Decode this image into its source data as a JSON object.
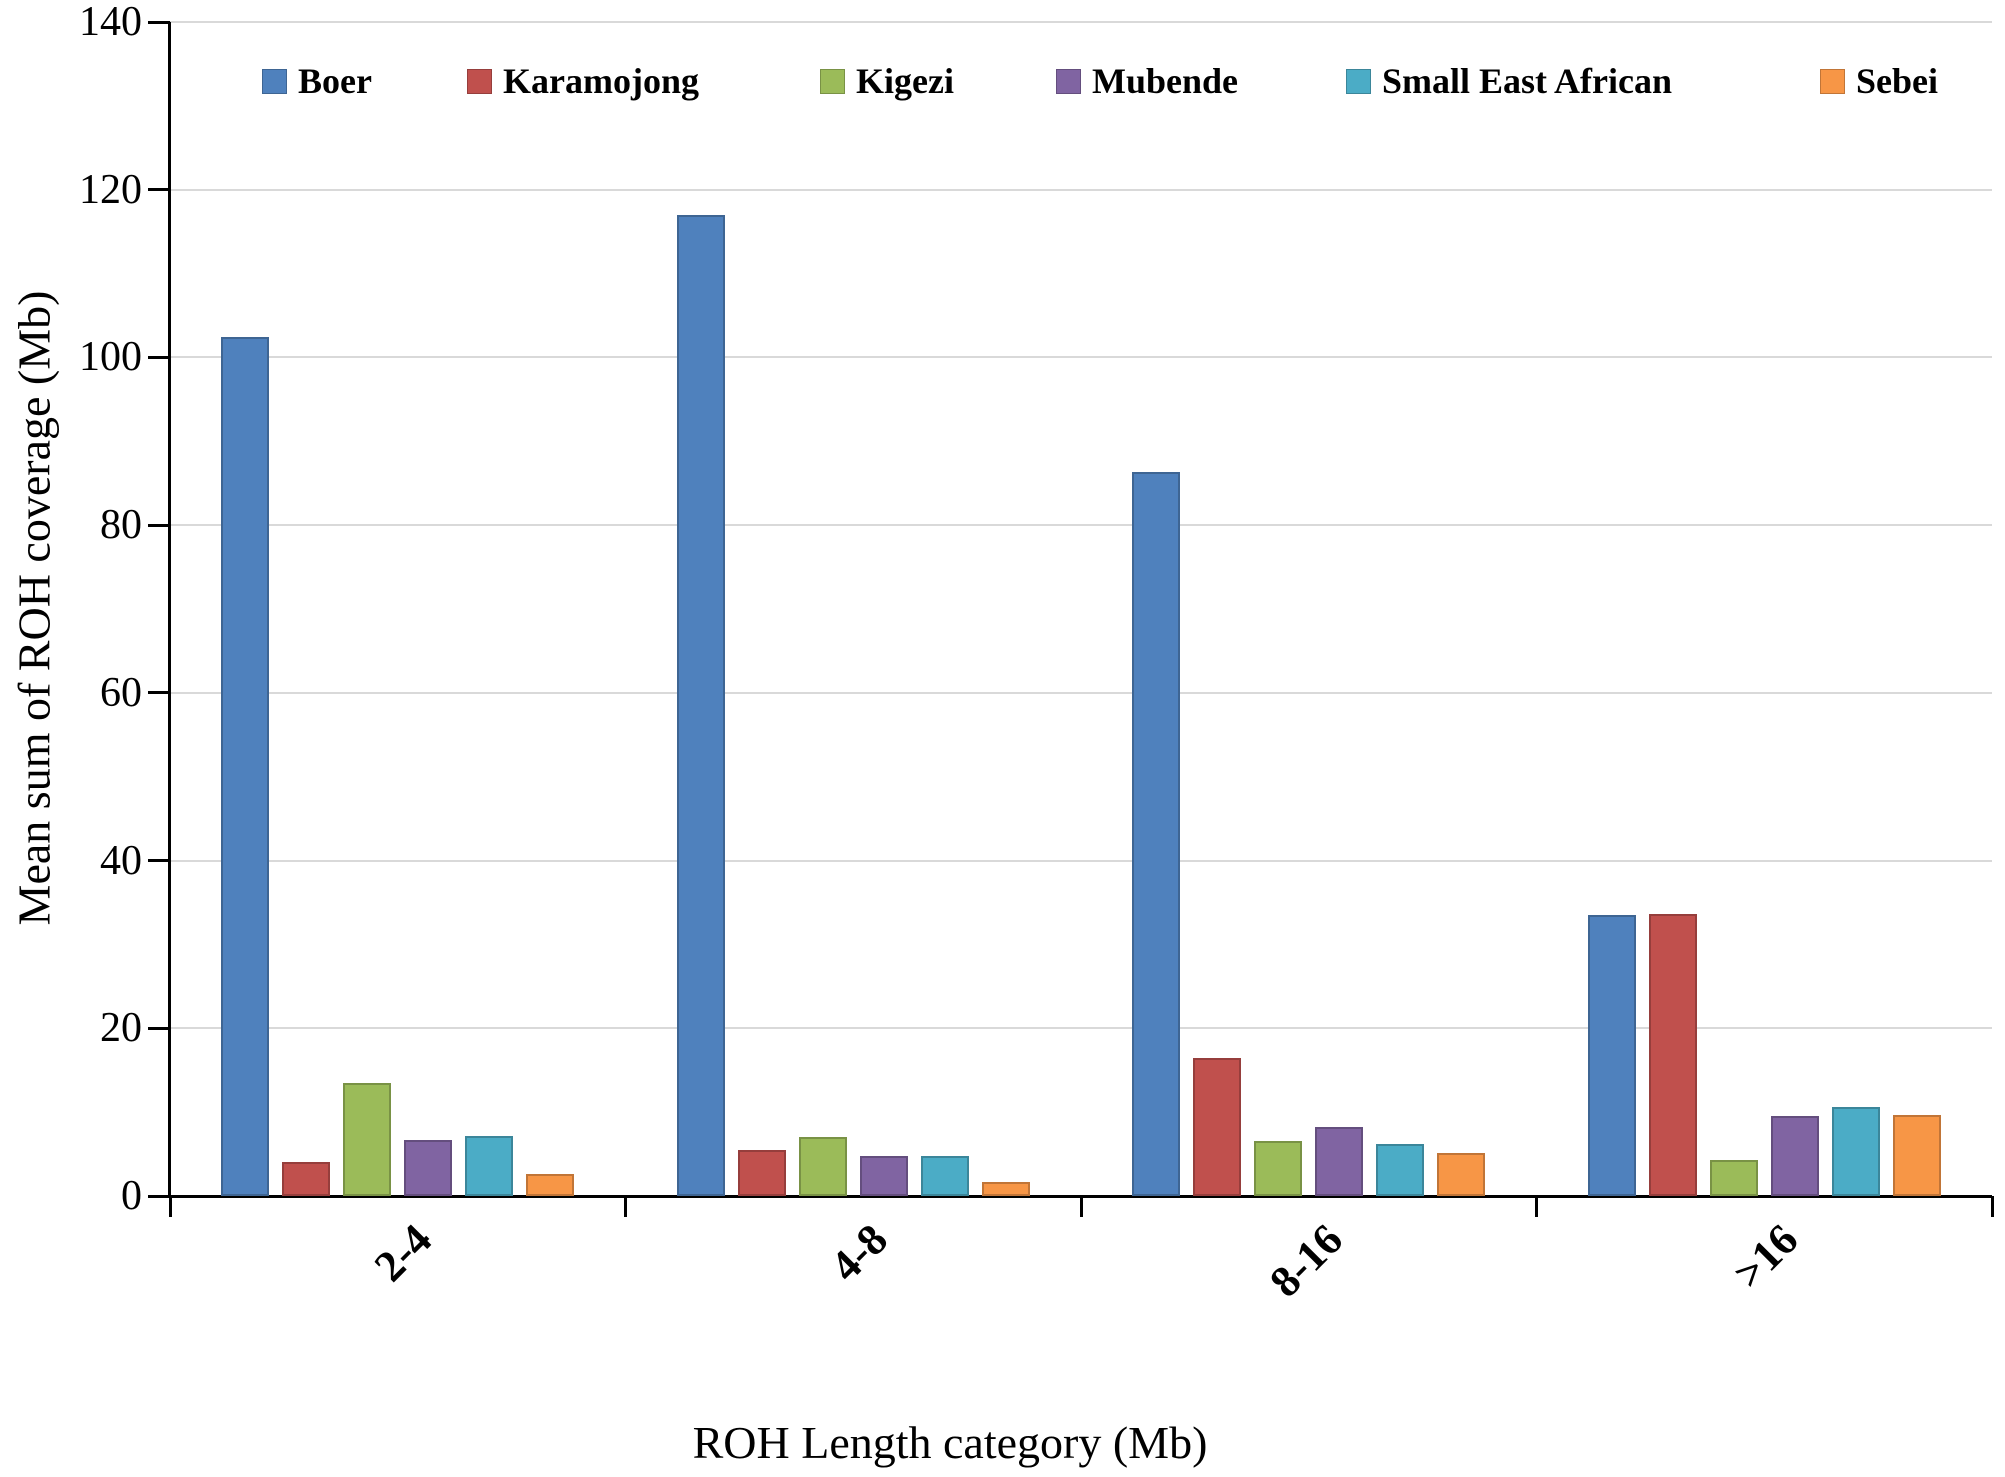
{
  "figure": {
    "background": "#FFFFFF",
    "axis_color": "#000000",
    "gridline_color": "#D9D9D9"
  },
  "chart_data": {
    "type": "bar",
    "title": "",
    "xlabel": "ROH Length category (Mb)",
    "ylabel": "Mean sum of ROH coverage (Mb)",
    "categories": [
      "2-4",
      "4-8",
      "8-16",
      ">16"
    ],
    "series": [
      {
        "name": "Boer",
        "color": "#4F81BD",
        "values": [
          102.4,
          117.0,
          86.3,
          33.5
        ]
      },
      {
        "name": "Karamojong",
        "color": "#C0504D",
        "values": [
          4.1,
          5.5,
          16.5,
          33.6
        ]
      },
      {
        "name": "Kigezi",
        "color": "#9BBB59",
        "values": [
          13.5,
          7.0,
          6.6,
          4.3
        ]
      },
      {
        "name": "Mubende",
        "color": "#8064A2",
        "values": [
          6.7,
          4.8,
          8.2,
          9.5
        ]
      },
      {
        "name": "Small East African",
        "color": "#4BACC6",
        "values": [
          7.2,
          4.8,
          6.2,
          10.6
        ]
      },
      {
        "name": "Sebei",
        "color": "#F79646",
        "values": [
          2.6,
          1.7,
          5.1,
          9.7
        ]
      }
    ],
    "ylim": [
      0,
      140
    ],
    "yticks": [
      0,
      20,
      40,
      60,
      80,
      100,
      120,
      140
    ],
    "grid": "horizontal",
    "legend_position": "top"
  }
}
